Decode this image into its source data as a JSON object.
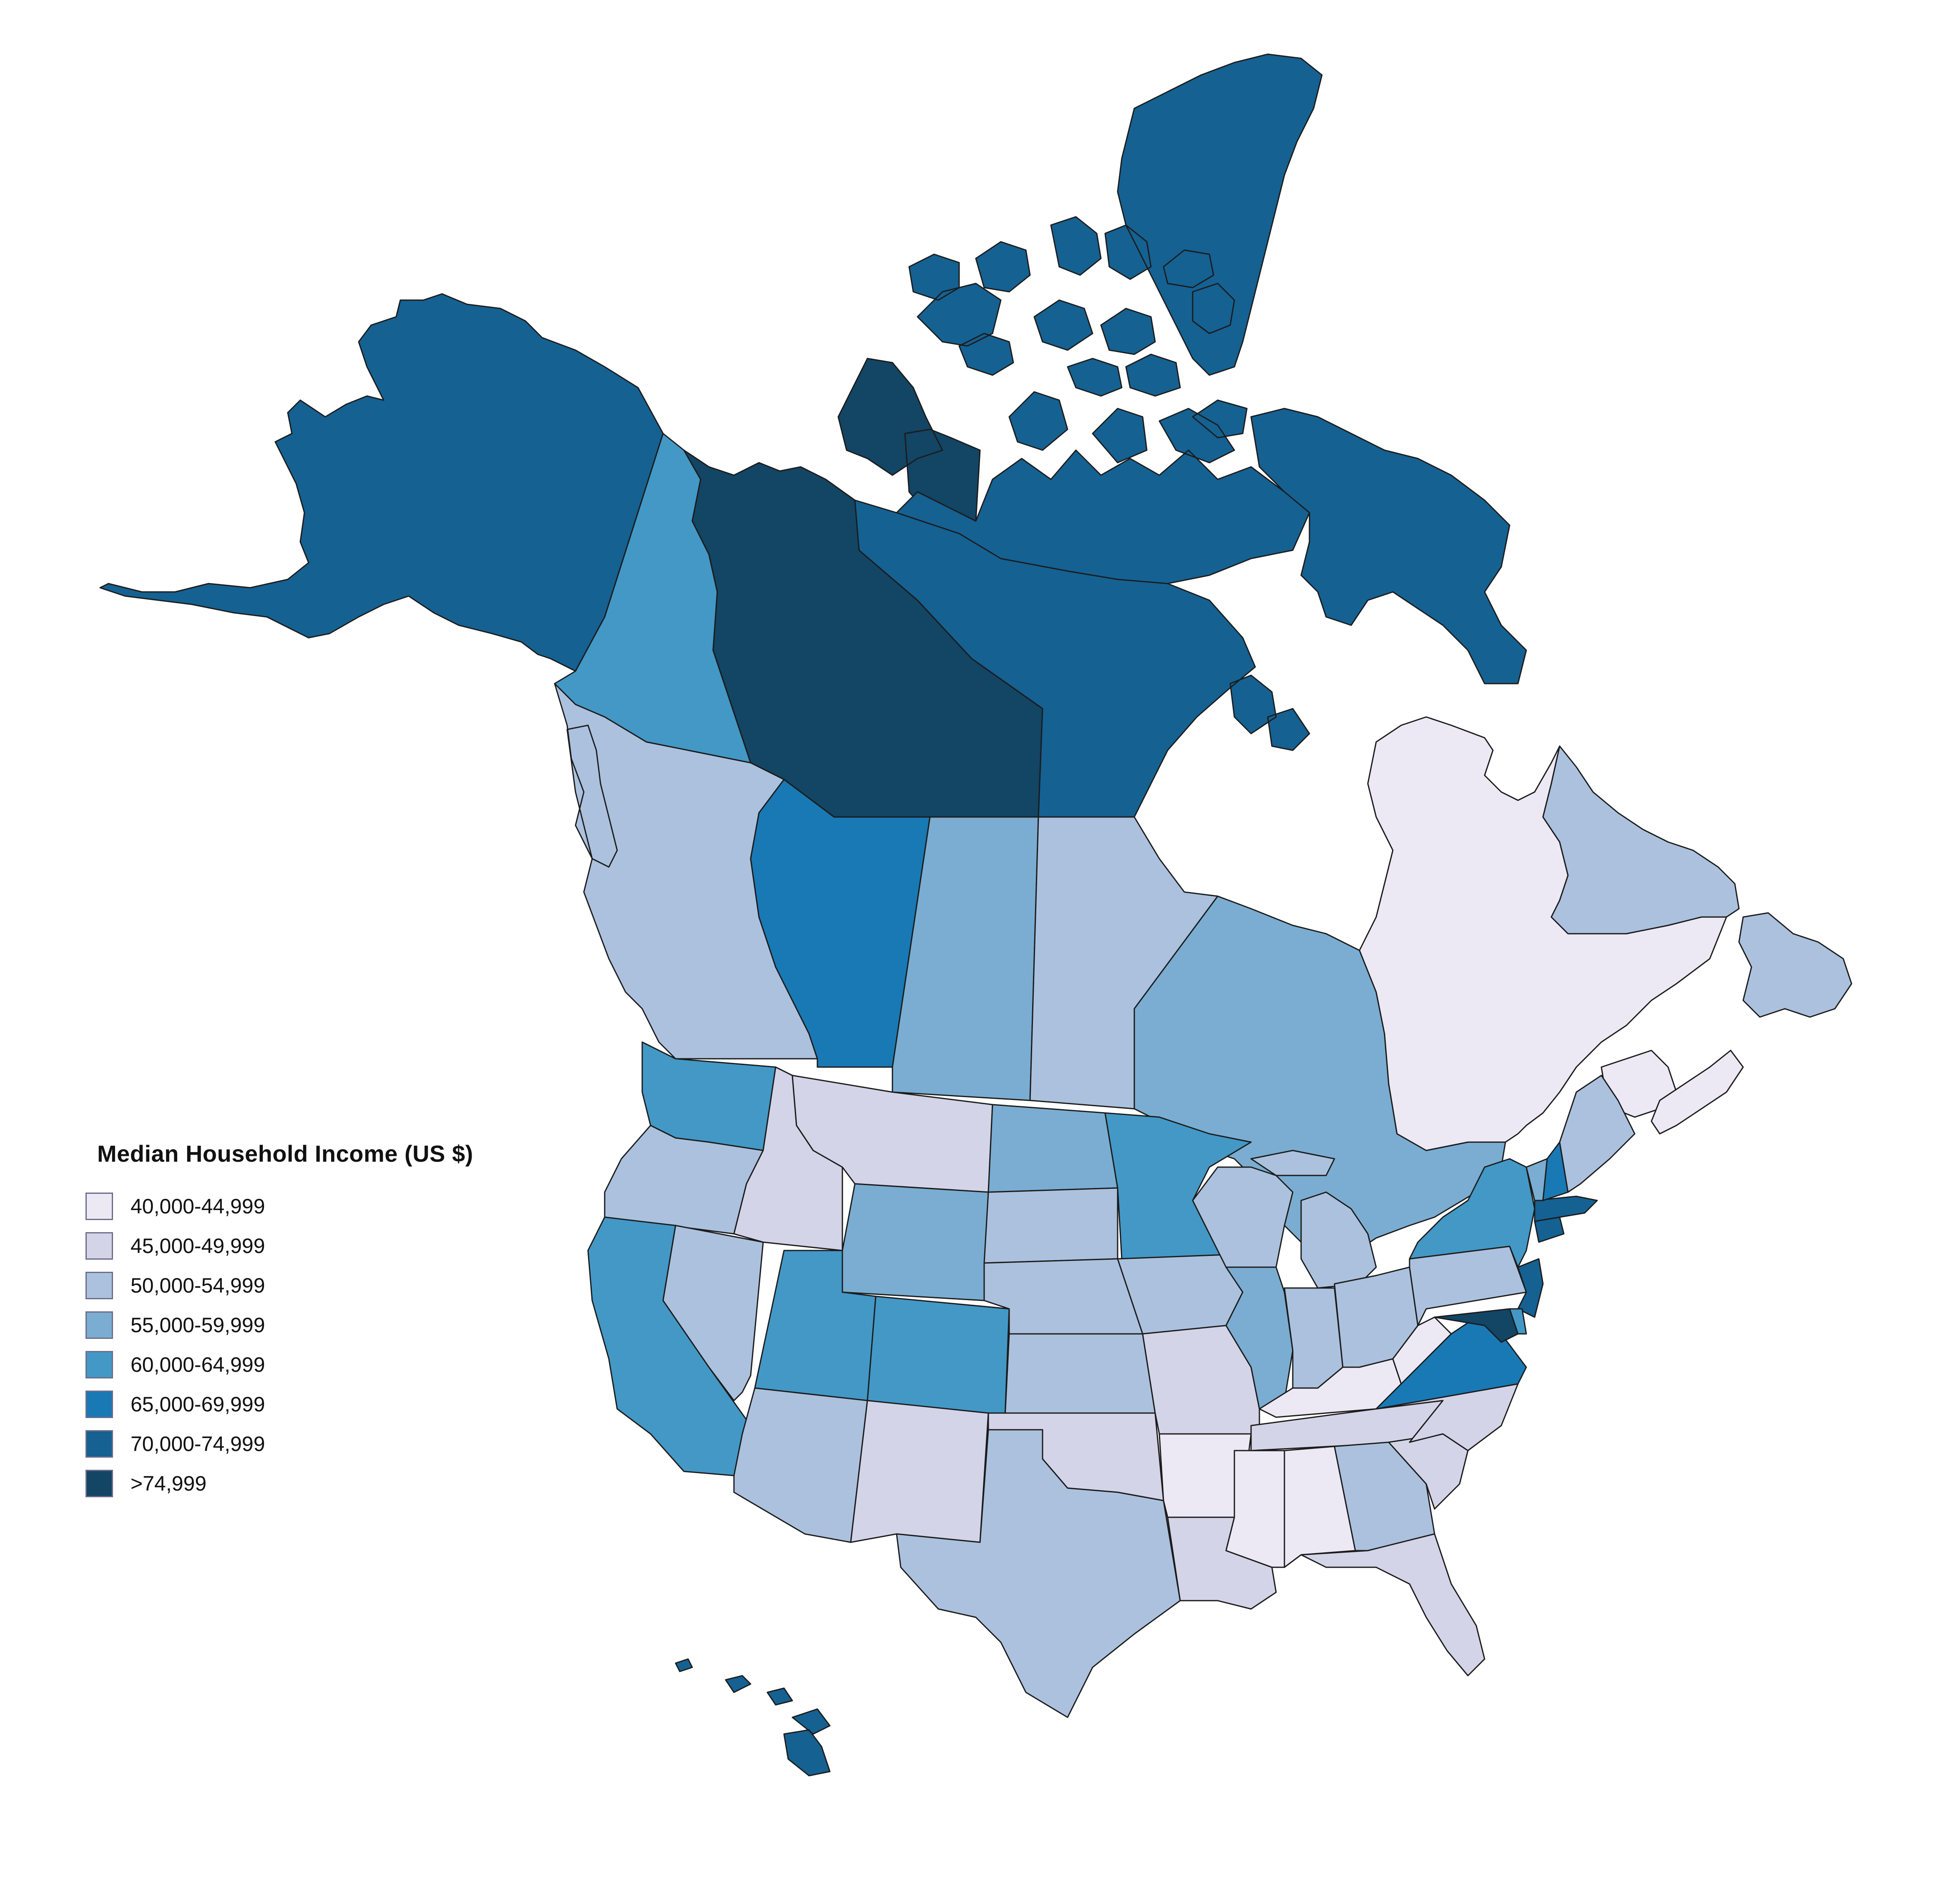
{
  "legend": {
    "title": "Median Household Income (US $)",
    "items": [
      {
        "label": "40,000-44,999",
        "color": "#ece8f4"
      },
      {
        "label": "45,000-49,999",
        "color": "#d4d4e8"
      },
      {
        "label": "50,000-54,999",
        "color": "#abc1de"
      },
      {
        "label": "55,000-59,999",
        "color": "#7aadd1"
      },
      {
        "label": "60,000-64,999",
        "color": "#4398c6"
      },
      {
        "label": "65,000-69,999",
        "color": "#1979b5"
      },
      {
        "label": "70,000-74,999",
        "color": "#156192"
      },
      {
        "label": ">74,999",
        "color": "#134564"
      }
    ]
  },
  "regions": [
    {
      "name": "Alaska",
      "bin": 6
    },
    {
      "name": "Hawaii",
      "bin": 6
    },
    {
      "name": "Nunavut",
      "bin": 6
    },
    {
      "name": "Northwest Territories",
      "bin": 7
    },
    {
      "name": "Yukon",
      "bin": 4
    },
    {
      "name": "British Columbia",
      "bin": 2
    },
    {
      "name": "Alberta",
      "bin": 5
    },
    {
      "name": "Saskatchewan",
      "bin": 3
    },
    {
      "name": "Manitoba",
      "bin": 2
    },
    {
      "name": "Ontario",
      "bin": 3
    },
    {
      "name": "Quebec",
      "bin": 0
    },
    {
      "name": "Newfoundland and Labrador",
      "bin": 2
    },
    {
      "name": "New Brunswick",
      "bin": 0
    },
    {
      "name": "Nova Scotia",
      "bin": 0
    },
    {
      "name": "Washington",
      "bin": 4
    },
    {
      "name": "Oregon",
      "bin": 2
    },
    {
      "name": "California",
      "bin": 4
    },
    {
      "name": "Nevada",
      "bin": 2
    },
    {
      "name": "Idaho",
      "bin": 1
    },
    {
      "name": "Montana",
      "bin": 1
    },
    {
      "name": "Wyoming",
      "bin": 3
    },
    {
      "name": "Utah",
      "bin": 4
    },
    {
      "name": "Colorado",
      "bin": 4
    },
    {
      "name": "Arizona",
      "bin": 2
    },
    {
      "name": "New Mexico",
      "bin": 1
    },
    {
      "name": "North Dakota",
      "bin": 3
    },
    {
      "name": "South Dakota",
      "bin": 2
    },
    {
      "name": "Nebraska",
      "bin": 2
    },
    {
      "name": "Kansas",
      "bin": 2
    },
    {
      "name": "Oklahoma",
      "bin": 1
    },
    {
      "name": "Texas",
      "bin": 2
    },
    {
      "name": "Minnesota",
      "bin": 4
    },
    {
      "name": "Iowa",
      "bin": 2
    },
    {
      "name": "Missouri",
      "bin": 1
    },
    {
      "name": "Arkansas",
      "bin": 0
    },
    {
      "name": "Louisiana",
      "bin": 1
    },
    {
      "name": "Wisconsin",
      "bin": 2
    },
    {
      "name": "Illinois",
      "bin": 3
    },
    {
      "name": "Michigan",
      "bin": 2
    },
    {
      "name": "Indiana",
      "bin": 2
    },
    {
      "name": "Ohio",
      "bin": 2
    },
    {
      "name": "Kentucky",
      "bin": 0
    },
    {
      "name": "Tennessee",
      "bin": 1
    },
    {
      "name": "Mississippi",
      "bin": 0
    },
    {
      "name": "Alabama",
      "bin": 0
    },
    {
      "name": "Georgia",
      "bin": 2
    },
    {
      "name": "Florida",
      "bin": 1
    },
    {
      "name": "South Carolina",
      "bin": 1
    },
    {
      "name": "North Carolina",
      "bin": 1
    },
    {
      "name": "Virginia",
      "bin": 5
    },
    {
      "name": "West Virginia",
      "bin": 0
    },
    {
      "name": "Pennsylvania",
      "bin": 2
    },
    {
      "name": "New York",
      "bin": 4
    },
    {
      "name": "New Jersey",
      "bin": 6
    },
    {
      "name": "Maryland",
      "bin": 7
    },
    {
      "name": "Delaware",
      "bin": 4
    },
    {
      "name": "Connecticut",
      "bin": 6
    },
    {
      "name": "Massachusetts",
      "bin": 6
    },
    {
      "name": "Vermont",
      "bin": 3
    },
    {
      "name": "New Hampshire",
      "bin": 5
    },
    {
      "name": "Maine",
      "bin": 2
    }
  ]
}
